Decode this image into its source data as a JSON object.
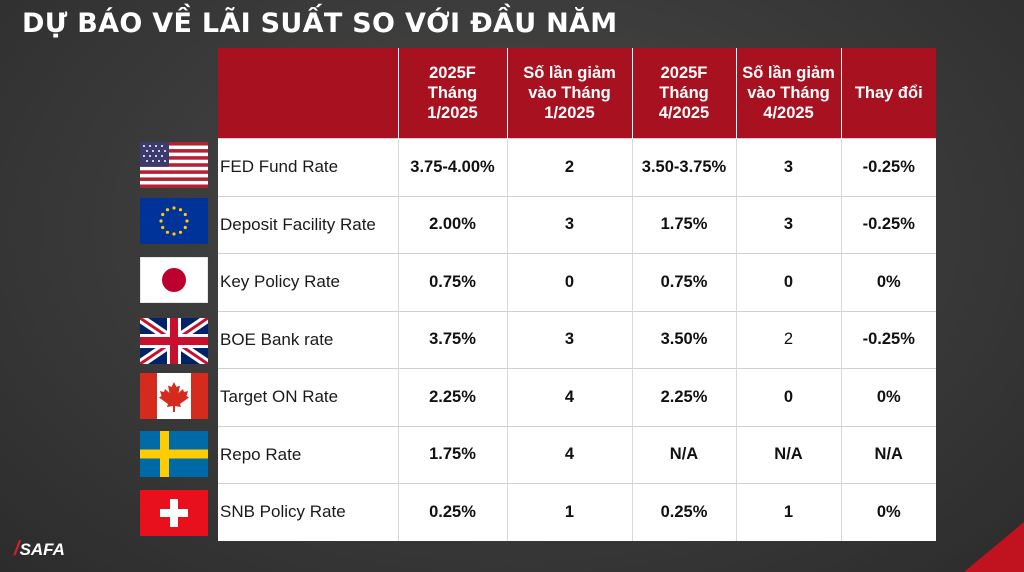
{
  "title": "DỰ BÁO VỀ LÃI SUẤT SO VỚI ĐẦU NĂM",
  "logo": {
    "mark": "/",
    "text": "SAFA"
  },
  "table": {
    "headers": [
      "",
      "2025F Tháng 1/2025",
      "Số lần giảm vào Tháng 1/2025",
      "2025F Tháng 4/2025",
      "Số lần giảm vào Tháng 4/2025",
      "Thay đổi"
    ],
    "rows": [
      {
        "flag": "usa-flag-icon",
        "name": "FED Fund Rate",
        "jan": "3.75-4.00%",
        "jan_cuts": "2",
        "apr": "3.50-3.75%",
        "apr_cuts": "3",
        "change": "-0.25%"
      },
      {
        "flag": "eu-flag-icon",
        "name": "Deposit Facility Rate",
        "jan": "2.00%",
        "jan_cuts": "3",
        "apr": "1.75%",
        "apr_cuts": "3",
        "change": "-0.25%"
      },
      {
        "flag": "japan-flag-icon",
        "name": "Key Policy Rate",
        "jan": "0.75%",
        "jan_cuts": "0",
        "apr": "0.75%",
        "apr_cuts": "0",
        "change": "0%"
      },
      {
        "flag": "uk-flag-icon",
        "name": "BOE Bank rate",
        "jan": "3.75%",
        "jan_cuts": "3",
        "apr": "3.50%",
        "apr_cuts": "2",
        "change": "-0.25%"
      },
      {
        "flag": "canada-flag-icon",
        "name": "Target ON Rate",
        "jan": "2.25%",
        "jan_cuts": "4",
        "apr": "2.25%",
        "apr_cuts": "0",
        "change": "0%"
      },
      {
        "flag": "sweden-flag-icon",
        "name": "Repo Rate",
        "jan": "1.75%",
        "jan_cuts": "4",
        "apr": "N/A",
        "apr_cuts": "N/A",
        "change": "N/A"
      },
      {
        "flag": "switzerland-flag-icon",
        "name": "SNB Policy Rate",
        "jan": "0.25%",
        "jan_cuts": "1",
        "apr": "0.25%",
        "apr_cuts": "1",
        "change": "0%"
      }
    ]
  },
  "colors": {
    "header_red": "#a8111f",
    "negative": "#c0131f",
    "positive": "#16a34a"
  }
}
